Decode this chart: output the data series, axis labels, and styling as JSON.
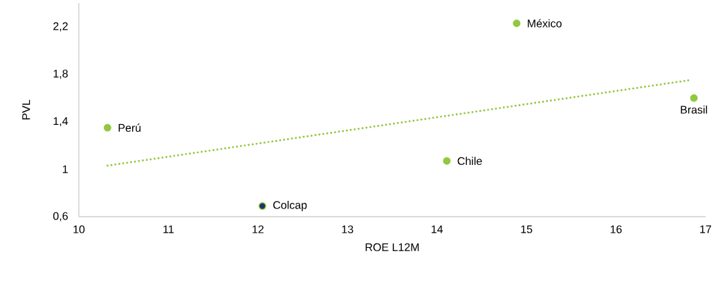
{
  "chart_data": {
    "type": "scatter",
    "xlabel": "ROE L12M",
    "ylabel": "PVL",
    "xlim": [
      10,
      17
    ],
    "xticks": [
      10,
      11,
      12,
      13,
      14,
      15,
      16,
      17
    ],
    "ylim": [
      0.6,
      2.4
    ],
    "yticks": [
      {
        "value": 0.6,
        "label": "0,6"
      },
      {
        "value": 1,
        "label": "1"
      },
      {
        "value": 1.4,
        "label": "1,4"
      },
      {
        "value": 1.8,
        "label": "1,8"
      },
      {
        "value": 2.2,
        "label": "2,2"
      }
    ],
    "grid": false,
    "series": [
      {
        "color": "#92c83e",
        "marker": "circle",
        "x": [
          10.32,
          12.05,
          14.11,
          14.89,
          16.87
        ],
        "values": [
          1.35,
          0.69,
          1.07,
          2.23,
          1.6
        ],
        "colors": [
          "#92c83e",
          "#1f3864",
          "#92c83e",
          "#92c83e",
          "#92c83e"
        ]
      },
      {
        "type": "line",
        "color": "#92c83e",
        "line_style": "dotted",
        "marker": "none",
        "x": [
          10.32,
          16.82
        ],
        "values": [
          1.03,
          1.75
        ]
      }
    ],
    "annotations": [
      {
        "text": "Perú",
        "x": 10.32,
        "y": 1.35
      },
      {
        "text": "Colcap",
        "x": 12.05,
        "y": 0.69
      },
      {
        "text": "Chile",
        "x": 14.11,
        "y": 1.07
      },
      {
        "text": "México",
        "x": 14.89,
        "y": 2.23
      },
      {
        "text": "Brasil",
        "x": 16.87,
        "y": 1.6
      }
    ]
  }
}
